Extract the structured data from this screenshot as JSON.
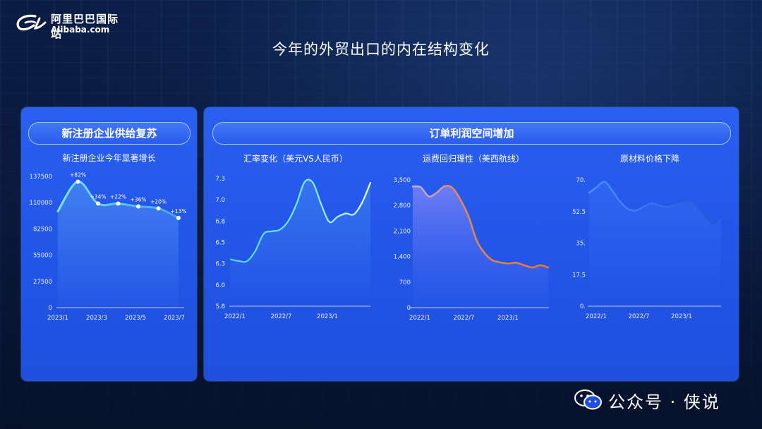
{
  "logo": {
    "cn": "阿里巴巴国际站",
    "en": "Alibaba.com"
  },
  "page_title": "今年的外贸出口的内在结构变化",
  "left_panel": {
    "header": "新注册企业供给复苏"
  },
  "right_panel": {
    "header": "订单利润空间增加"
  },
  "watermark": {
    "text": "公众号 · 侠说"
  },
  "colors": {
    "panel": "#2456ea",
    "cyan_line": "#5ee8ff",
    "orange_line": "#f07a3a",
    "blue_line": "#3a7dff",
    "axis": "#cfe0ff"
  },
  "chart_data": [
    {
      "type": "line",
      "title": "新注册企业今年显著增长",
      "xlabel": "",
      "ylabel": "",
      "x": [
        "2023/1",
        "2023/2",
        "2023/3",
        "2023/4",
        "2023/5",
        "2023/6",
        "2023/7"
      ],
      "x_ticks": [
        "2023/1",
        "2023/3",
        "2023/5",
        "2023/7"
      ],
      "y_ticks": [
        "0",
        "27500",
        "55000",
        "82500",
        "110000",
        "137500"
      ],
      "ylim": [
        0,
        137500
      ],
      "series": [
        {
          "values": [
            101000,
            132000,
            109000,
            109000,
            106000,
            104000,
            94000
          ]
        }
      ],
      "data_labels": [
        "+82%",
        "+34%",
        "+22%",
        "+36%",
        "+20%",
        "+13%"
      ],
      "grid": false
    },
    {
      "type": "line",
      "title": "汇率变化（美元VS人民币）",
      "xlabel": "",
      "ylabel": "",
      "x": [
        "2022/1",
        "2022/2",
        "2022/3",
        "2022/4",
        "2022/5",
        "2022/6",
        "2022/7",
        "2022/8",
        "2022/9",
        "2022/10",
        "2022/11",
        "2022/12",
        "2023/1",
        "2023/2",
        "2023/3",
        "2023/4",
        "2023/5",
        "2023/6"
      ],
      "x_ticks": [
        "2022/1",
        "2022/7",
        "2023/1"
      ],
      "y_ticks": [
        "5.8",
        "6.0",
        "6.3",
        "6.5",
        "6.8",
        "7.0",
        "7.3"
      ],
      "ylim": [
        5.8,
        7.3
      ],
      "series": [
        {
          "values": [
            6.35,
            6.33,
            6.33,
            6.45,
            6.65,
            6.68,
            6.7,
            6.8,
            7.0,
            7.26,
            7.25,
            7.0,
            6.79,
            6.85,
            6.89,
            6.88,
            7.02,
            7.25
          ]
        }
      ],
      "grid": false
    },
    {
      "type": "area",
      "title": "运费回归理性（美西航线）",
      "xlabel": "",
      "ylabel": "",
      "x": [
        "2022/1",
        "2022/2",
        "2022/3",
        "2022/4",
        "2022/5",
        "2022/6",
        "2022/7",
        "2022/8",
        "2022/9",
        "2022/10",
        "2022/11",
        "2022/12",
        "2023/1",
        "2023/2",
        "2023/3",
        "2023/4",
        "2023/5",
        "2023/6"
      ],
      "x_ticks": [
        "2022/1",
        "2022/7",
        "2023/1"
      ],
      "y_ticks": [
        "0",
        "700",
        "1,400",
        "2,100",
        "2,800",
        "3,500"
      ],
      "ylim": [
        0,
        3500
      ],
      "series": [
        {
          "values": [
            3320,
            3300,
            3050,
            3150,
            3330,
            3280,
            2950,
            2500,
            1850,
            1500,
            1300,
            1240,
            1210,
            1230,
            1160,
            1100,
            1160,
            1100
          ]
        }
      ],
      "grid": false
    },
    {
      "type": "line",
      "title": "原材料价格下降",
      "xlabel": "",
      "ylabel": "",
      "x": [
        "2022/1",
        "2022/2",
        "2022/3",
        "2022/4",
        "2022/5",
        "2022/6",
        "2022/7",
        "2022/8",
        "2022/9",
        "2022/10",
        "2022/11",
        "2022/12",
        "2023/1",
        "2023/2",
        "2023/3",
        "2023/4",
        "2023/5",
        "2023/6"
      ],
      "x_ticks": [
        "2022/1",
        "2022/7",
        "2023/1"
      ],
      "y_ticks": [
        "0.",
        "17.5",
        "35.",
        "52.5",
        "70."
      ],
      "ylim": [
        0,
        70
      ],
      "series": [
        {
          "values": [
            63,
            66,
            69,
            64,
            58,
            54,
            53,
            55,
            57,
            56,
            55,
            56,
            57,
            58,
            55,
            50,
            46,
            50
          ]
        }
      ],
      "grid": false
    }
  ]
}
